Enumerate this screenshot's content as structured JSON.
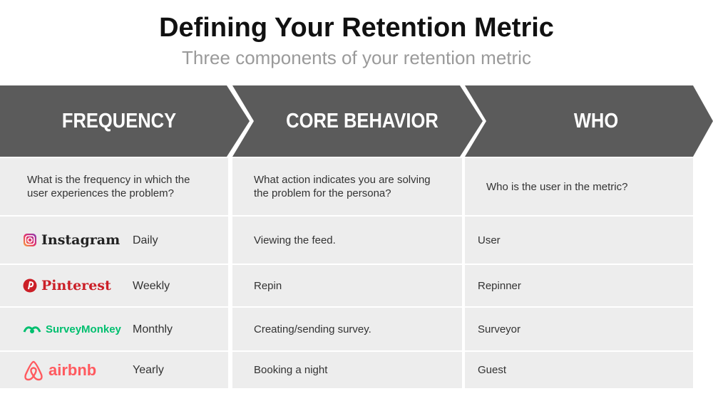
{
  "header": {
    "title": "Defining Your Retention Metric",
    "subtitle": "Three components of your retention metric"
  },
  "table": {
    "columns": [
      "FREQUENCY",
      "CORE BEHAVIOR",
      "WHO"
    ],
    "questions": [
      "What is the frequency in which the user experiences the problem?",
      "What action indicates you are solving the problem for the persona?",
      "Who is the user in the metric?"
    ],
    "rows": [
      {
        "company": "Instagram",
        "frequency": "Daily",
        "behavior": "Viewing the feed.",
        "who": "User"
      },
      {
        "company": "Pinterest",
        "frequency": "Weekly",
        "behavior": "Repin",
        "who": "Repinner"
      },
      {
        "company": "SurveyMonkey",
        "frequency": "Monthly",
        "behavior": "Creating/sending survey.",
        "who": "Surveyor"
      },
      {
        "company": "airbnb",
        "frequency": "Yearly",
        "behavior": "Booking a night",
        "who": "Guest"
      }
    ]
  }
}
